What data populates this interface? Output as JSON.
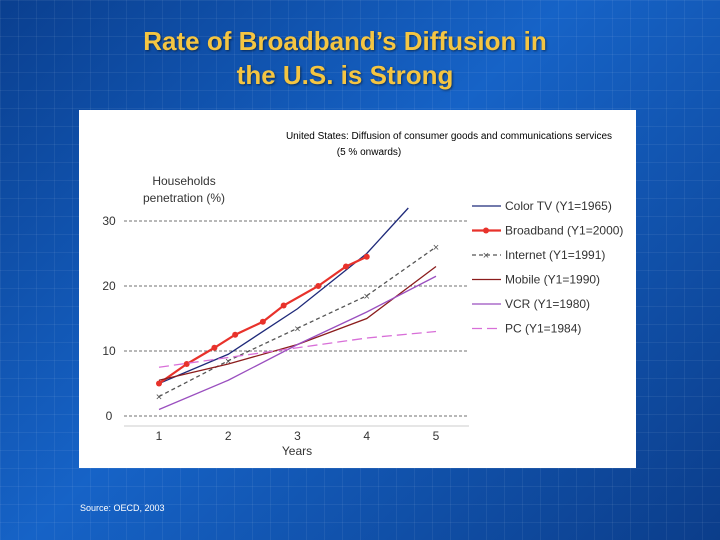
{
  "slide": {
    "title_line1": "Rate of Broadband’s Diffusion in",
    "title_line2": "the U.S. is Strong",
    "source": "Source: OECD, 2003"
  },
  "colors": {
    "background": "#0f52b5",
    "title": "#f4c542"
  },
  "chart_data": {
    "type": "line",
    "title": "United States: Diffusion of consumer goods and communications services",
    "subtitle": "(5 % onwards)",
    "ylabel_line1": "Households",
    "ylabel_line2": "penetration (%)",
    "xlabel": "Years",
    "x": [
      1,
      2,
      3,
      4,
      5
    ],
    "xlim": [
      1,
      5
    ],
    "ylim": [
      0,
      30
    ],
    "yticks": [
      0,
      10,
      20,
      30
    ],
    "grid": "horizontal dashed",
    "legend": "right",
    "series": [
      {
        "name": "Color TV (Y1=1965)",
        "color": "#1f2a7a",
        "dash": "",
        "marker": "none",
        "x": [
          1,
          2,
          3,
          4,
          4.6
        ],
        "y": [
          5,
          9.5,
          16.5,
          25,
          32
        ]
      },
      {
        "name": "Broadband (Y1=2000)",
        "color": "#e8322b",
        "dash": "",
        "marker": "dot",
        "x": [
          1,
          1.4,
          1.8,
          2.1,
          2.5,
          2.8,
          3.3,
          3.7,
          4
        ],
        "y": [
          5,
          8,
          10.5,
          12.5,
          14.5,
          17,
          20,
          23,
          24.5
        ]
      },
      {
        "name": "Internet (Y1=1991)",
        "color": "#555555",
        "dash": "4,3",
        "marker": "star",
        "x": [
          1,
          2,
          3,
          4,
          5
        ],
        "y": [
          3,
          8.5,
          13.5,
          18.5,
          26
        ]
      },
      {
        "name": "Mobile (Y1=1990)",
        "color": "#8b1c1c",
        "dash": "",
        "marker": "none",
        "x": [
          1,
          2,
          3,
          4,
          5
        ],
        "y": [
          5.5,
          8,
          11,
          15,
          23
        ]
      },
      {
        "name": "VCR (Y1=1980)",
        "color": "#9a4fbf",
        "dash": "",
        "marker": "none",
        "x": [
          1,
          2,
          3,
          4,
          5
        ],
        "y": [
          1,
          5.5,
          11,
          16,
          21.5
        ]
      },
      {
        "name": "PC (Y1=1984)",
        "color": "#d86fd8",
        "dash": "10,5",
        "marker": "none",
        "x": [
          1,
          2,
          3,
          4,
          5
        ],
        "y": [
          7.5,
          9,
          10.5,
          12,
          13
        ]
      }
    ]
  }
}
